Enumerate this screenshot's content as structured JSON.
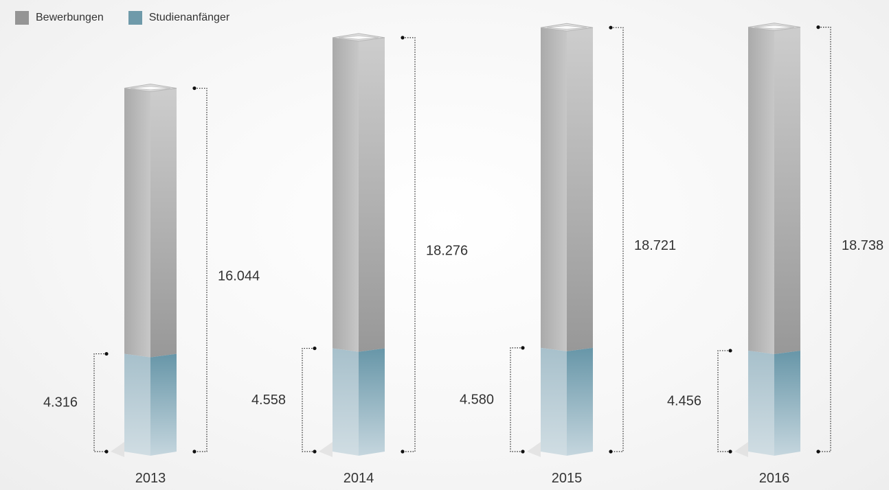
{
  "legend": {
    "applications_label": "Bewerbungen",
    "freshmen_label": "Studienanfänger"
  },
  "colors": {
    "applications": "#959595",
    "freshmen": "#6f9aaa"
  },
  "chart_data": {
    "type": "bar",
    "categories": [
      "2013",
      "2014",
      "2015",
      "2016"
    ],
    "series": [
      {
        "name": "Bewerbungen",
        "values": [
          16044,
          18276,
          18721,
          18738
        ],
        "labels": [
          "16.044",
          "18.276",
          "18.721",
          "18.738"
        ]
      },
      {
        "name": "Studienanfänger",
        "values": [
          4316,
          4558,
          4580,
          4456
        ],
        "labels": [
          "4.316",
          "4.558",
          "4.580",
          "4.456"
        ]
      }
    ]
  }
}
